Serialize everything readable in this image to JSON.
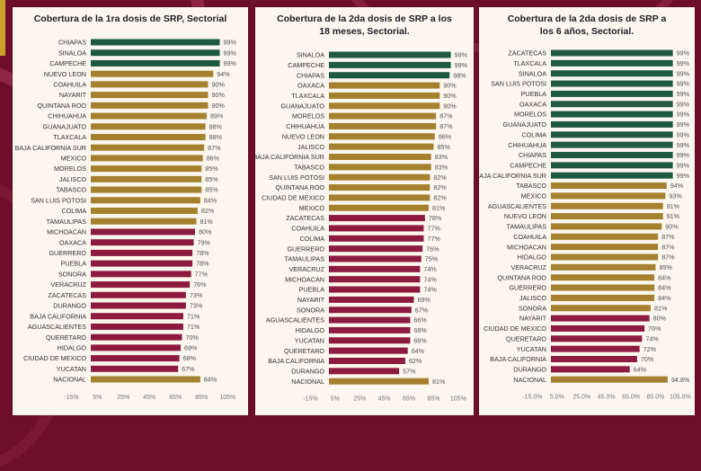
{
  "colors": {
    "high": "#1e5a3f",
    "mid": "#a5802e",
    "low": "#8c1b3f",
    "national": "#a5802e",
    "background": "#6e0f2a",
    "panel": "#fbf6ee"
  },
  "chart_data": [
    {
      "type": "bar",
      "orientation": "horizontal",
      "title": "Cobertura de la 1ra dosis de SRP, Sectorial",
      "xlim": [
        -15,
        105
      ],
      "xticks": [
        "-15%",
        "5%",
        "25%",
        "45%",
        "65%",
        "85%",
        "105%"
      ],
      "xtick_values": [
        -15,
        5,
        25,
        45,
        65,
        85,
        105
      ],
      "grid": false,
      "categories": [
        "CHIAPAS",
        "SINALOA",
        "CAMPECHE",
        "NUEVO LEON",
        "COAHUILA",
        "NAYARIT",
        "QUINTANA ROO",
        "CHIHUAHUA",
        "GUANAJUATO",
        "TLAXCALA",
        "BAJA CALIFORNIA SUR",
        "MEXICO",
        "MORELOS",
        "JALISCO",
        "TABASCO",
        "SAN LUIS POTOSI",
        "COLIMA",
        "TAMAULIPAS",
        "MICHOACAN",
        "OAXACA",
        "GUERRERO",
        "PUEBLA",
        "SONORA",
        "VERACRUZ",
        "ZACATECAS",
        "DURANGO",
        "BAJA CALIFORNIA",
        "AGUASCALIENTES",
        "QUERETARO",
        "HIDALGO",
        "CIUDAD DE MEXICO",
        "YUCATAN",
        "NACIONAL"
      ],
      "values": [
        99,
        99,
        99,
        94,
        90,
        90,
        90,
        89,
        88,
        88,
        87,
        86,
        85,
        85,
        85,
        84,
        82,
        81,
        80,
        79,
        78,
        78,
        77,
        76,
        73,
        73,
        71,
        71,
        70,
        69,
        68,
        67,
        84
      ],
      "labels": [
        "99%",
        "99%",
        "99%",
        "94%",
        "90%",
        "90%",
        "90%",
        "89%",
        "88%",
        "88%",
        "87%",
        "86%",
        "85%",
        "85%",
        "85%",
        "84%",
        "82%",
        "81%",
        "80%",
        "79%",
        "78%",
        "78%",
        "77%",
        "76%",
        "73%",
        "73%",
        "71%",
        "71%",
        "70%",
        "69%",
        "68%",
        "67%",
        "84%"
      ],
      "tiers": [
        "high",
        "high",
        "high",
        "mid",
        "mid",
        "mid",
        "mid",
        "mid",
        "mid",
        "mid",
        "mid",
        "mid",
        "mid",
        "mid",
        "mid",
        "mid",
        "mid",
        "mid",
        "low",
        "low",
        "low",
        "low",
        "low",
        "low",
        "low",
        "low",
        "low",
        "low",
        "low",
        "low",
        "low",
        "low",
        "national"
      ]
    },
    {
      "type": "bar",
      "orientation": "horizontal",
      "title": "Cobertura de la 2da dosis de SRP a los 18 meses, Sectorial.",
      "xlim": [
        -15,
        105
      ],
      "xticks": [
        "-15%",
        "5%",
        "25%",
        "45%",
        "65%",
        "85%",
        "105%"
      ],
      "xtick_values": [
        -15,
        5,
        25,
        45,
        65,
        85,
        105
      ],
      "grid": false,
      "categories": [
        "SINALOA",
        "CAMPECHE",
        "CHIAPAS",
        "OAXACA",
        "TLAXCALA",
        "GUANAJUATO",
        "MORELOS",
        "CHIHUAHUA",
        "NUEVO LEON",
        "JALISCO",
        "BAJA CALIFORNIA SUR",
        "TABASCO",
        "SAN LUIS POTOSI",
        "QUINTANA ROO",
        "CIUDAD DE MEXICO",
        "MEXICO",
        "ZACATECAS",
        "COAHUILA",
        "COLIMA",
        "GUERRERO",
        "TAMAULIPAS",
        "VERACRUZ",
        "MICHOACAN",
        "PUEBLA",
        "NAYARIT",
        "SONORA",
        "AGUASCALIENTES",
        "HIDALGO",
        "YUCATAN",
        "QUERETARO",
        "BAJA CALIFORNIA",
        "DURANGO",
        "NACIONAL"
      ],
      "values": [
        99,
        99,
        98,
        90,
        90,
        90,
        87,
        87,
        86,
        85,
        83,
        83,
        82,
        82,
        82,
        81,
        78,
        77,
        77,
        76,
        75,
        74,
        74,
        74,
        69,
        67,
        66,
        66,
        66,
        64,
        62,
        57,
        81
      ],
      "labels": [
        "99%",
        "99%",
        "98%",
        "90%",
        "90%",
        "90%",
        "87%",
        "87%",
        "86%",
        "85%",
        "83%",
        "83%",
        "82%",
        "82%",
        "82%",
        "81%",
        "78%",
        "77%",
        "77%",
        "76%",
        "75%",
        "74%",
        "74%",
        "74%",
        "69%",
        "67%",
        "66%",
        "66%",
        "66%",
        "64%",
        "62%",
        "57%",
        "81%"
      ],
      "tiers": [
        "high",
        "high",
        "high",
        "mid",
        "mid",
        "mid",
        "mid",
        "mid",
        "mid",
        "mid",
        "mid",
        "mid",
        "mid",
        "mid",
        "mid",
        "mid",
        "low",
        "low",
        "low",
        "low",
        "low",
        "low",
        "low",
        "low",
        "low",
        "low",
        "low",
        "low",
        "low",
        "low",
        "low",
        "low",
        "national"
      ]
    },
    {
      "type": "bar",
      "orientation": "horizontal",
      "title": "Cobertura de la 2da dosis de SRP a los 6 años, Sectorial.",
      "xlim": [
        -15,
        105
      ],
      "xticks": [
        "-15.0%",
        "5.0%",
        "25.0%",
        "45.0%",
        "65.0%",
        "85.0%",
        "105.0%"
      ],
      "xtick_values": [
        -15,
        5,
        25,
        45,
        65,
        85,
        105
      ],
      "grid": false,
      "categories": [
        "ZACATECAS",
        "TLAXCALA",
        "SINALOA",
        "SAN LUIS POTOSI",
        "PUEBLA",
        "OAXACA",
        "MORELOS",
        "GUANAJUATO",
        "COLIMA",
        "CHIHUAHUA",
        "CHIAPAS",
        "CAMPECHE",
        "BAJA CALIFORNIA SUR",
        "TABASCO",
        "MEXICO",
        "AGUASCALIENTES",
        "NUEVO LEON",
        "TAMAULIPAS",
        "COAHUILA",
        "MICHOACAN",
        "HIDALGO",
        "VERACRUZ",
        "QUINTANA ROO",
        "GUERRERO",
        "JALISCO",
        "SONORA",
        "NAYARIT",
        "CIUDAD DE MEXICO",
        "QUERETARO",
        "YUCATAN",
        "BAJA CALIFORNIA",
        "DURANGO",
        "NACIONAL"
      ],
      "values": [
        99,
        99,
        99,
        99,
        99,
        99,
        99,
        99,
        99,
        99,
        99,
        99,
        99,
        94,
        93,
        91,
        91,
        90,
        87,
        87,
        87,
        85,
        84,
        84,
        84,
        81,
        80,
        76,
        74,
        72,
        70,
        64,
        94.8
      ],
      "labels": [
        "99%",
        "99%",
        "99%",
        "99%",
        "99%",
        "99%",
        "99%",
        "99%",
        "99%",
        "99%",
        "99%",
        "99%",
        "99%",
        "94%",
        "93%",
        "91%",
        "91%",
        "90%",
        "87%",
        "87%",
        "87%",
        "85%",
        "84%",
        "84%",
        "84%",
        "81%",
        "80%",
        "76%",
        "74%",
        "72%",
        "70%",
        "64%",
        "94.8%"
      ],
      "tiers": [
        "high",
        "high",
        "high",
        "high",
        "high",
        "high",
        "high",
        "high",
        "high",
        "high",
        "high",
        "high",
        "high",
        "mid",
        "mid",
        "mid",
        "mid",
        "mid",
        "mid",
        "mid",
        "mid",
        "mid",
        "mid",
        "mid",
        "mid",
        "mid",
        "low",
        "low",
        "low",
        "low",
        "low",
        "low",
        "national"
      ]
    }
  ]
}
